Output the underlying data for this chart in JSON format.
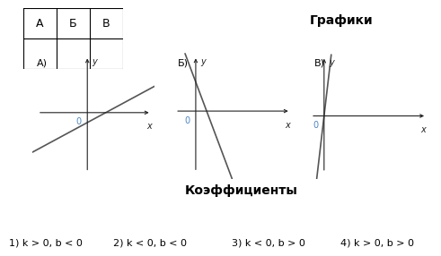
{
  "title_grafiki": "Графики",
  "title_coefficients": "Коэффициенты",
  "graph_labels": [
    "А)",
    "Б)",
    "В)"
  ],
  "graphs": [
    {
      "k": 0.25,
      "b": -0.15,
      "xlim": [
        -1.8,
        2.2
      ],
      "ylim": [
        -1.0,
        0.9
      ]
    },
    {
      "k": -2.5,
      "b": 0.6,
      "xlim": [
        -0.5,
        2.2
      ],
      "ylim": [
        -1.4,
        1.2
      ]
    },
    {
      "k": 10.0,
      "b": 0.0,
      "xlim": [
        -0.3,
        2.2
      ],
      "ylim": [
        -1.5,
        1.5
      ]
    }
  ],
  "coeff_labels": [
    "1) k > 0, b < 0",
    "2) k < 0, b < 0",
    "3) k < 0, b > 0",
    "4) k > 0, b > 0"
  ],
  "table_headers": [
    "А",
    "Б",
    "В"
  ],
  "line_color": "#555555",
  "axis_color": "#222222",
  "label_color": "#4a86c8",
  "bg_color": "#ffffff",
  "font_size_title": 10,
  "font_size_graph_label": 8,
  "font_size_coeff": 8,
  "font_size_table": 9,
  "font_size_axis": 7
}
